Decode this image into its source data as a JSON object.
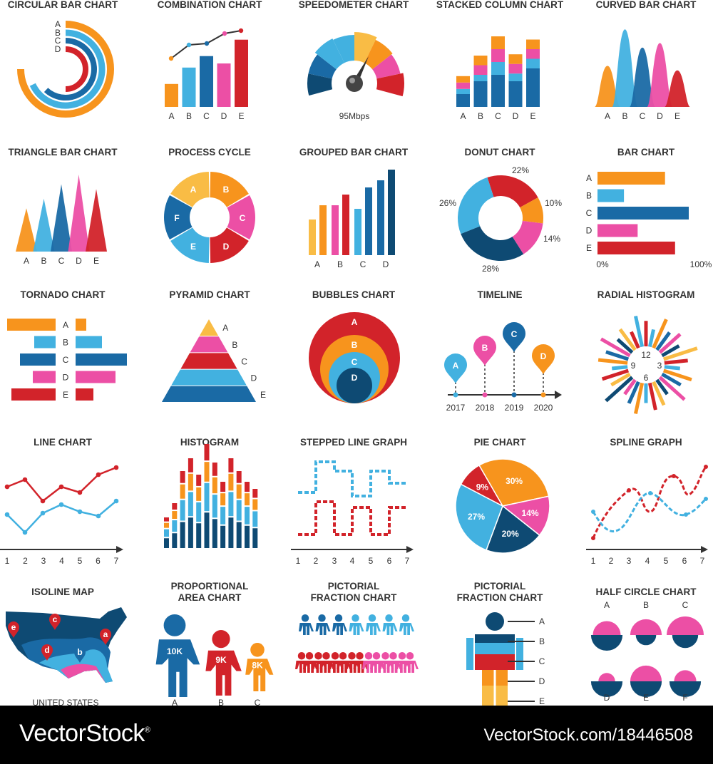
{
  "colors": {
    "orange": "#f7941d",
    "yellow": "#f9bc45",
    "sky": "#42b1e0",
    "blue": "#1a6aa5",
    "navy": "#0e4a73",
    "pink": "#ec4fa5",
    "red": "#d2232a",
    "grey": "#333333"
  },
  "banner": {
    "logo": "VectorStock",
    "logo_mark": "®",
    "url": "VectorStock.com/18446508"
  },
  "titles": {
    "circular": "CIRCULAR BAR CHART",
    "combination": "COMBINATION CHART",
    "speedometer": "SPEEDOMETER CHART",
    "stacked": "STACKED COLUMN CHART",
    "curved": "CURVED BAR CHART",
    "triangle": "TRIANGLE BAR CHART",
    "process": "PROCESS CYCLE",
    "grouped": "GROUPED BAR CHART",
    "donut": "DONUT CHART",
    "bar": "BAR CHART",
    "tornado": "TORNADO CHART",
    "pyramid": "PYRAMID CHART",
    "bubbles": "BUBBLES CHART",
    "timeline": "TIMELINE",
    "radial": "RADIAL HISTOGRAM",
    "line": "LINE CHART",
    "histogram": "HISTOGRAM",
    "stepped": "STEPPED LINE GRAPH",
    "pie": "PIE CHART",
    "spline": "SPLINE GRAPH",
    "isoline": "ISOLINE MAP",
    "proportional_1": "PROPORTIONAL",
    "proportional_2": "AREA CHART",
    "pictorial1_1": "PICTORIAL",
    "pictorial1_2": "FRACTION CHART",
    "pictorial2_1": "PICTORIAL",
    "pictorial2_2": "FRACTION CHART",
    "halfcircle": "HALF CIRCLE CHART"
  },
  "letters": [
    "A",
    "B",
    "C",
    "D",
    "E"
  ],
  "letters_lower": [
    "a",
    "b",
    "c",
    "d",
    "e"
  ],
  "numbers": [
    "1",
    "2",
    "3",
    "4",
    "5",
    "6",
    "7"
  ],
  "speed_label": "95Mbps",
  "bar_axis": [
    "0%",
    "100%"
  ],
  "clock_labels": [
    "12",
    "3",
    "6",
    "9"
  ],
  "years": [
    "2017",
    "2018",
    "2019",
    "2020"
  ],
  "map_label": "UNITED STATES",
  "half_letters": [
    "A",
    "B",
    "C",
    "D",
    "E",
    "F"
  ],
  "chart_data": [
    {
      "id": "circular",
      "type": "bar",
      "title": "CIRCULAR BAR CHART",
      "categories": [
        "A",
        "B",
        "C",
        "D"
      ],
      "values": [
        75,
        68,
        62,
        50
      ]
    },
    {
      "id": "combination",
      "type": "bar",
      "title": "COMBINATION CHART",
      "categories": [
        "A",
        "B",
        "C",
        "D",
        "E"
      ],
      "values": [
        28,
        48,
        62,
        53,
        82
      ],
      "line": [
        70,
        77,
        80,
        86,
        92
      ]
    },
    {
      "id": "speedometer",
      "type": "gauge",
      "title": "SPEEDOMETER CHART",
      "value": 95,
      "unit": "Mbps"
    },
    {
      "id": "stacked",
      "type": "bar",
      "title": "STACKED COLUMN CHART",
      "categories": [
        "A",
        "B",
        "C",
        "D",
        "E"
      ],
      "series": [
        {
          "values": [
            20,
            40,
            50,
            40,
            60
          ]
        },
        {
          "values": [
            8,
            10,
            20,
            12,
            15
          ]
        },
        {
          "values": [
            10,
            15,
            20,
            15,
            15
          ]
        },
        {
          "values": [
            10,
            15,
            20,
            15,
            15
          ]
        }
      ]
    },
    {
      "id": "curved",
      "type": "area",
      "title": "CURVED BAR CHART",
      "categories": [
        "A",
        "B",
        "C",
        "D",
        "E"
      ],
      "values": [
        45,
        85,
        65,
        70,
        40
      ]
    },
    {
      "id": "triangle",
      "type": "bar",
      "title": "TRIANGLE BAR CHART",
      "categories": [
        "A",
        "B",
        "C",
        "D",
        "E"
      ],
      "values": [
        45,
        55,
        70,
        80,
        65
      ]
    },
    {
      "id": "process",
      "type": "pie",
      "title": "PROCESS CYCLE",
      "categories": [
        "A",
        "B",
        "C",
        "D",
        "E",
        "F"
      ],
      "values": [
        1,
        1,
        1,
        1,
        1,
        1
      ]
    },
    {
      "id": "grouped",
      "type": "bar",
      "title": "GROUPED BAR CHART",
      "categories": [
        "A",
        "B",
        "C",
        "D"
      ],
      "series": [
        {
          "values": [
            40,
            40,
            55,
            77
          ]
        },
        {
          "values": [
            55,
            38,
            78,
            82
          ]
        },
        {
          "values": [
            70,
            50,
            95,
            100
          ]
        }
      ]
    },
    {
      "id": "donut",
      "type": "pie",
      "title": "DONUT CHART",
      "values": [
        22,
        10,
        14,
        28,
        26
      ],
      "labels": [
        "22%",
        "10%",
        "14%",
        "28%",
        "26%"
      ]
    },
    {
      "id": "bar",
      "type": "bar",
      "title": "BAR CHART",
      "categories": [
        "A",
        "B",
        "C",
        "D",
        "E"
      ],
      "values": [
        74,
        29,
        100,
        44,
        85
      ],
      "xlim": [
        0,
        100
      ]
    },
    {
      "id": "tornado",
      "type": "bar",
      "title": "TORNADO CHART",
      "categories": [
        "A",
        "B",
        "C",
        "D",
        "E"
      ],
      "left": [
        68,
        30,
        50,
        32,
        62
      ],
      "right": [
        15,
        37,
        72,
        56,
        25
      ]
    },
    {
      "id": "pyramid",
      "type": "bar",
      "title": "PYRAMID CHART",
      "categories": [
        "A",
        "B",
        "C",
        "D",
        "E"
      ]
    },
    {
      "id": "bubbles",
      "type": "scatter",
      "title": "BUBBLES CHART",
      "categories": [
        "A",
        "B",
        "C",
        "D"
      ],
      "values": [
        100,
        75,
        50,
        30
      ]
    },
    {
      "id": "timeline",
      "type": "line",
      "title": "TIMELINE",
      "categories": [
        "A",
        "B",
        "C",
        "D"
      ],
      "x": [
        "2017",
        "2018",
        "2019",
        "2020"
      ]
    },
    {
      "id": "radial",
      "type": "bar",
      "title": "RADIAL HISTOGRAM",
      "values": [
        65,
        45,
        80,
        55,
        70,
        50,
        90,
        60,
        40,
        75,
        55,
        85,
        45,
        65,
        70,
        50,
        80,
        60,
        45,
        90,
        55,
        70,
        40,
        75,
        60,
        85,
        50,
        65,
        45,
        80
      ]
    },
    {
      "id": "line",
      "type": "line",
      "title": "LINE CHART",
      "x": [
        1,
        2,
        3,
        4,
        5,
        6,
        7
      ],
      "series": [
        {
          "values": [
            85,
            98,
            70,
            85,
            80,
            100,
            110
          ]
        },
        {
          "values": [
            45,
            25,
            50,
            62,
            52,
            48,
            68
          ]
        }
      ]
    },
    {
      "id": "histogram",
      "type": "bar",
      "title": "HISTOGRAM",
      "values": [
        45,
        65,
        110,
        128,
        105,
        148,
        122,
        95,
        128,
        110,
        95,
        85
      ],
      "bands": [
        0.35,
        0.28,
        0.2,
        0.17
      ]
    },
    {
      "id": "stepped",
      "type": "line",
      "title": "STEPPED LINE GRAPH",
      "x": [
        1,
        2,
        3,
        4,
        5,
        6,
        7
      ],
      "series": [
        {
          "values": [
            78,
            78,
            125,
            112,
            80,
            95,
            80
          ]
        },
        {
          "values": [
            22,
            65,
            22,
            60,
            22,
            60,
            22
          ]
        }
      ]
    },
    {
      "id": "pie",
      "type": "pie",
      "title": "PIE CHART",
      "values": [
        30,
        14,
        20,
        27,
        9
      ],
      "labels": [
        "30%",
        "14%",
        "20%",
        "27%",
        "9%"
      ]
    },
    {
      "id": "spline",
      "type": "line",
      "title": "SPLINE GRAPH",
      "x": [
        1,
        2,
        3,
        4,
        5,
        6,
        7
      ]
    },
    {
      "id": "isoline",
      "type": "heatmap",
      "title": "ISOLINE MAP",
      "categories": [
        "a",
        "b",
        "c",
        "d",
        "e"
      ]
    },
    {
      "id": "proportional",
      "type": "bar",
      "title": "PROPORTIONAL AREA CHART",
      "categories": [
        "A",
        "B",
        "C"
      ],
      "values": [
        10,
        9,
        8
      ],
      "labels": [
        "10K",
        "9K",
        "8K"
      ]
    },
    {
      "id": "pictorial1",
      "type": "bar",
      "title": "PICTORIAL FRACTION CHART",
      "values": [
        7,
        7
      ]
    },
    {
      "id": "pictorial2",
      "type": "bar",
      "title": "PICTORIAL FRACTION CHART",
      "categories": [
        "A",
        "B",
        "C",
        "D",
        "E"
      ]
    },
    {
      "id": "halfcircle",
      "type": "bar",
      "title": "HALF CIRCLE CHART",
      "categories": [
        "A",
        "B",
        "C",
        "D",
        "E",
        "F"
      ],
      "top": [
        0.75,
        0.85,
        1.0,
        0.45,
        0.85,
        0.6
      ],
      "bottom": [
        0.85,
        0.55,
        0.7,
        0.85,
        0.85,
        0.85
      ]
    }
  ]
}
